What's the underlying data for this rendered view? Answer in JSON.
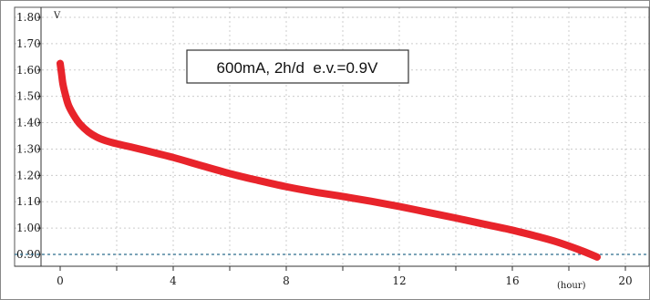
{
  "chart_data": {
    "type": "line",
    "title": "",
    "xlabel": "(hour)",
    "ylabel": "V",
    "annotation": "600mA, 2h/d  e.v.=0.9V",
    "xlim": [
      -0.7,
      21
    ],
    "ylim": [
      0.86,
      1.82
    ],
    "x_ticks": [
      "0",
      "4",
      "8",
      "12",
      "16",
      "20"
    ],
    "x_tick_values": [
      0,
      4,
      8,
      12,
      16,
      20
    ],
    "y_ticks": [
      "0.90",
      "1.00",
      "1.10",
      "1.20",
      "1.30",
      "1.40",
      "1.50",
      "1.60",
      "1.70",
      "1.80"
    ],
    "y_tick_values": [
      0.9,
      1.0,
      1.1,
      1.2,
      1.3,
      1.4,
      1.5,
      1.6,
      1.7,
      1.8
    ],
    "grid": true,
    "end_voltage_line": 0.9,
    "colors": {
      "series": "#e8242b",
      "grid": "#cccccc",
      "end_voltage": "#2e6e8e",
      "frame": "#555555"
    },
    "series": [
      {
        "x": [
          0,
          0.05,
          0.1,
          0.2,
          0.3,
          0.5,
          0.7,
          1.0,
          1.3,
          1.6,
          2.0,
          2.5,
          3.0,
          4.0,
          5.0,
          6.0,
          7.0,
          8.0,
          9.0,
          10.0,
          11.0,
          12.0,
          13.0,
          14.0,
          15.0,
          16.0,
          17.0,
          17.5,
          18.0,
          18.5,
          19.0
        ],
        "y": [
          1.625,
          1.585,
          1.545,
          1.5,
          1.465,
          1.425,
          1.395,
          1.365,
          1.345,
          1.332,
          1.32,
          1.308,
          1.295,
          1.268,
          1.237,
          1.207,
          1.181,
          1.157,
          1.137,
          1.12,
          1.102,
          1.082,
          1.06,
          1.038,
          1.015,
          0.992,
          0.965,
          0.95,
          0.932,
          0.912,
          0.89
        ]
      }
    ]
  }
}
